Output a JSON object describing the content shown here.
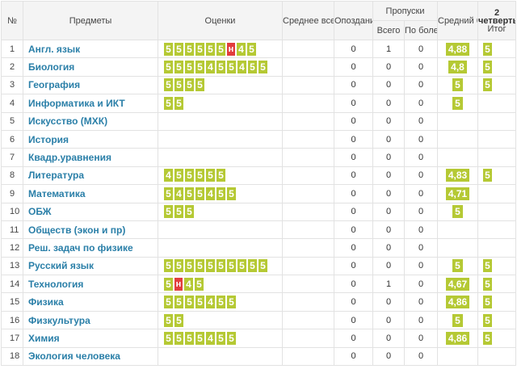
{
  "header": {
    "num": "№",
    "subjects": "Предметы",
    "marks": "Оценки",
    "thematic": "Среднее всех тематических",
    "late": "Опоздания",
    "absences": "Пропуски",
    "absences_total": "Всего",
    "absences_sick": "По болезни",
    "average": "Средний балл",
    "quarter_num": "2",
    "quarter_label": "четверть",
    "quarter_final": "Итог"
  },
  "rows": [
    {
      "num": "1",
      "subject": "Англ. язык",
      "marks": [
        "5",
        "5",
        "5",
        "5",
        "5",
        "5",
        "н",
        "4",
        "5"
      ],
      "late": "0",
      "total": "1",
      "sick": "0",
      "avg": "4,88",
      "final": "5"
    },
    {
      "num": "2",
      "subject": "Биология",
      "marks": [
        "5",
        "5",
        "5",
        "5",
        "4",
        "5",
        "5",
        "4",
        "5",
        "5"
      ],
      "late": "0",
      "total": "0",
      "sick": "0",
      "avg": "4,8",
      "final": "5"
    },
    {
      "num": "3",
      "subject": "География",
      "marks": [
        "5",
        "5",
        "5",
        "5"
      ],
      "late": "0",
      "total": "0",
      "sick": "0",
      "avg": "5",
      "final": "5"
    },
    {
      "num": "4",
      "subject": "Информатика и ИКТ",
      "marks": [
        "5",
        "5"
      ],
      "late": "0",
      "total": "0",
      "sick": "0",
      "avg": "5",
      "final": ""
    },
    {
      "num": "5",
      "subject": "Искусство (МХК)",
      "marks": [],
      "late": "0",
      "total": "0",
      "sick": "0",
      "avg": "",
      "final": ""
    },
    {
      "num": "6",
      "subject": "История",
      "marks": [],
      "late": "0",
      "total": "0",
      "sick": "0",
      "avg": "",
      "final": ""
    },
    {
      "num": "7",
      "subject": "Квадр.уравнения",
      "marks": [],
      "late": "0",
      "total": "0",
      "sick": "0",
      "avg": "",
      "final": ""
    },
    {
      "num": "8",
      "subject": "Литература",
      "marks": [
        "4",
        "5",
        "5",
        "5",
        "5",
        "5"
      ],
      "late": "0",
      "total": "0",
      "sick": "0",
      "avg": "4,83",
      "final": "5"
    },
    {
      "num": "9",
      "subject": "Математика",
      "marks": [
        "5",
        "4",
        "5",
        "5",
        "4",
        "5",
        "5"
      ],
      "late": "0",
      "total": "0",
      "sick": "0",
      "avg": "4,71",
      "final": ""
    },
    {
      "num": "10",
      "subject": "ОБЖ",
      "marks": [
        "5",
        "5",
        "5"
      ],
      "late": "0",
      "total": "0",
      "sick": "0",
      "avg": "5",
      "final": ""
    },
    {
      "num": "11",
      "subject": "Обществ (экон и пр)",
      "marks": [],
      "late": "0",
      "total": "0",
      "sick": "0",
      "avg": "",
      "final": ""
    },
    {
      "num": "12",
      "subject": "Реш. задач по физике",
      "marks": [],
      "late": "0",
      "total": "0",
      "sick": "0",
      "avg": "",
      "final": ""
    },
    {
      "num": "13",
      "subject": "Русский язык",
      "marks": [
        "5",
        "5",
        "5",
        "5",
        "5",
        "5",
        "5",
        "5",
        "5",
        "5"
      ],
      "late": "0",
      "total": "0",
      "sick": "0",
      "avg": "5",
      "final": "5"
    },
    {
      "num": "14",
      "subject": "Технология",
      "marks": [
        "5",
        "н",
        "4",
        "5"
      ],
      "late": "0",
      "total": "1",
      "sick": "0",
      "avg": "4,67",
      "final": "5"
    },
    {
      "num": "15",
      "subject": "Физика",
      "marks": [
        "5",
        "5",
        "5",
        "5",
        "4",
        "5",
        "5"
      ],
      "late": "0",
      "total": "0",
      "sick": "0",
      "avg": "4,86",
      "final": "5"
    },
    {
      "num": "16",
      "subject": "Физкультура",
      "marks": [
        "5",
        "5"
      ],
      "late": "0",
      "total": "0",
      "sick": "0",
      "avg": "5",
      "final": "5"
    },
    {
      "num": "17",
      "subject": "Химия",
      "marks": [
        "5",
        "5",
        "5",
        "5",
        "4",
        "5",
        "5"
      ],
      "late": "0",
      "total": "0",
      "sick": "0",
      "avg": "4,86",
      "final": "5"
    },
    {
      "num": "18",
      "subject": "Экология человека",
      "marks": [],
      "late": "0",
      "total": "0",
      "sick": "0",
      "avg": "",
      "final": ""
    }
  ],
  "colors": {
    "mark": "#b5c934",
    "absent_mark": "#e23d3d",
    "subject_link": "#2a7fa8"
  }
}
